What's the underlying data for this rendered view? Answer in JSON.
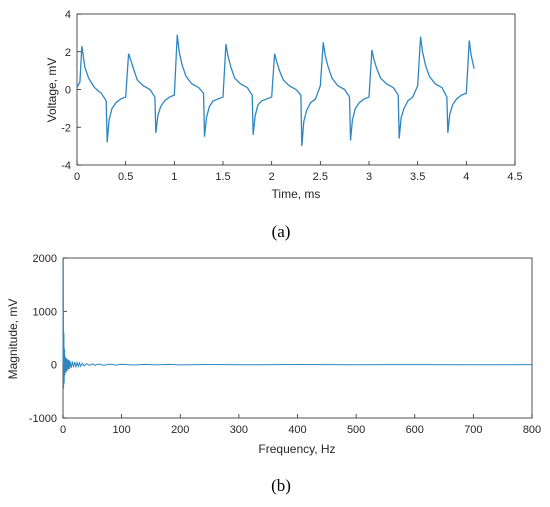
{
  "chart_data": [
    {
      "type": "line",
      "caption": "(a)",
      "xlabel": "Time, ms",
      "ylabel": "Voltage, mV",
      "xlim": [
        0,
        4.5
      ],
      "ylim": [
        -4,
        4
      ],
      "xticks": [
        "0",
        "0.5",
        "1",
        "1.5",
        "2",
        "2.5",
        "3",
        "3.5",
        "4",
        "4.5"
      ],
      "yticks": [
        "-4",
        "-2",
        "0",
        "2",
        "4"
      ],
      "grid": false,
      "color": "#2E86C1",
      "series": [
        {
          "x": [
            0,
            0.03,
            0.05,
            0.08,
            0.12,
            0.18,
            0.25,
            0.3,
            0.31,
            0.33,
            0.36,
            0.4,
            0.45,
            0.5,
            0.53,
            0.55,
            0.58,
            0.62,
            0.68,
            0.75,
            0.8,
            0.81,
            0.83,
            0.86,
            0.9,
            0.95,
            1.0,
            1.03,
            1.05,
            1.08,
            1.12,
            1.18,
            1.25,
            1.3,
            1.31,
            1.33,
            1.36,
            1.4,
            1.45,
            1.5,
            1.53,
            1.55,
            1.58,
            1.62,
            1.68,
            1.75,
            1.8,
            1.81,
            1.83,
            1.86,
            1.9,
            1.95,
            2.0,
            2.03,
            2.05,
            2.08,
            2.12,
            2.18,
            2.25,
            2.3,
            2.31,
            2.33,
            2.36,
            2.4,
            2.45,
            2.5,
            2.53,
            2.55,
            2.58,
            2.62,
            2.68,
            2.75,
            2.8,
            2.81,
            2.83,
            2.86,
            2.9,
            2.95,
            3.0,
            3.03,
            3.05,
            3.08,
            3.12,
            3.18,
            3.25,
            3.3,
            3.31,
            3.33,
            3.36,
            3.4,
            3.45,
            3.5,
            3.53,
            3.55,
            3.58,
            3.62,
            3.68,
            3.75,
            3.8,
            3.81,
            3.83,
            3.86,
            3.9,
            3.95,
            4.0,
            4.03,
            4.05,
            4.08
          ],
          "y": [
            0.1,
            0.4,
            2.3,
            1.2,
            0.6,
            0.1,
            -0.2,
            -0.6,
            -2.8,
            -1.6,
            -1.0,
            -0.7,
            -0.5,
            -0.4,
            1.9,
            1.6,
            1.1,
            0.5,
            0.2,
            0.0,
            -0.4,
            -2.3,
            -1.4,
            -0.9,
            -0.6,
            -0.4,
            -0.3,
            2.9,
            2.0,
            1.3,
            0.7,
            0.3,
            0.1,
            -0.2,
            -2.5,
            -1.5,
            -0.9,
            -0.6,
            -0.5,
            -0.4,
            2.4,
            1.8,
            1.2,
            0.6,
            0.3,
            0.1,
            -0.3,
            -2.4,
            -1.4,
            -0.8,
            -0.6,
            -0.5,
            -0.4,
            1.9,
            1.5,
            1.0,
            0.5,
            0.2,
            0.0,
            -0.3,
            -3.0,
            -1.7,
            -1.1,
            -0.7,
            -0.5,
            0.2,
            2.5,
            1.8,
            1.2,
            0.6,
            0.2,
            0.0,
            -0.4,
            -2.7,
            -1.6,
            -1.0,
            -0.7,
            -0.5,
            -0.4,
            2.1,
            1.6,
            1.1,
            0.6,
            0.3,
            0.1,
            -0.3,
            -2.6,
            -1.5,
            -1.0,
            -0.6,
            -0.4,
            0.2,
            2.8,
            2.0,
            1.3,
            0.7,
            0.3,
            0.1,
            -0.4,
            -2.3,
            -1.3,
            -0.8,
            -0.5,
            -0.3,
            -0.2,
            2.6,
            1.8,
            1.1
          ]
        }
      ]
    },
    {
      "type": "line",
      "caption": "(b)",
      "xlabel": "Frequency, Hz",
      "ylabel": "Magnitude, mV",
      "xlim": [
        0,
        800
      ],
      "ylim": [
        -1000,
        2000
      ],
      "xticks": [
        "0",
        "100",
        "200",
        "300",
        "400",
        "500",
        "600",
        "700",
        "800"
      ],
      "yticks": [
        "-1000",
        "0",
        "1000",
        "2000"
      ],
      "grid": false,
      "color": "#2E86C1",
      "series": [
        {
          "x": [
            0,
            0.5,
            1,
            1.5,
            2,
            2.5,
            3,
            4,
            5,
            6,
            7,
            8,
            9,
            10,
            11,
            12,
            14,
            16,
            18,
            20,
            22,
            24,
            26,
            28,
            30,
            33,
            36,
            40,
            45,
            50,
            55,
            60,
            70,
            80,
            90,
            100,
            120,
            140,
            160,
            180,
            200,
            250,
            300,
            400,
            500,
            600,
            700,
            800
          ],
          "y": [
            0,
            2000,
            -450,
            600,
            -350,
            300,
            -200,
            150,
            -150,
            120,
            -120,
            100,
            -90,
            90,
            -80,
            70,
            -60,
            60,
            -50,
            50,
            -40,
            40,
            -35,
            35,
            -30,
            25,
            -25,
            20,
            -15,
            15,
            -12,
            12,
            -10,
            10,
            -8,
            8,
            -6,
            6,
            -5,
            5,
            -4,
            3,
            -2,
            2,
            -1,
            1,
            -1,
            0
          ]
        }
      ]
    }
  ]
}
